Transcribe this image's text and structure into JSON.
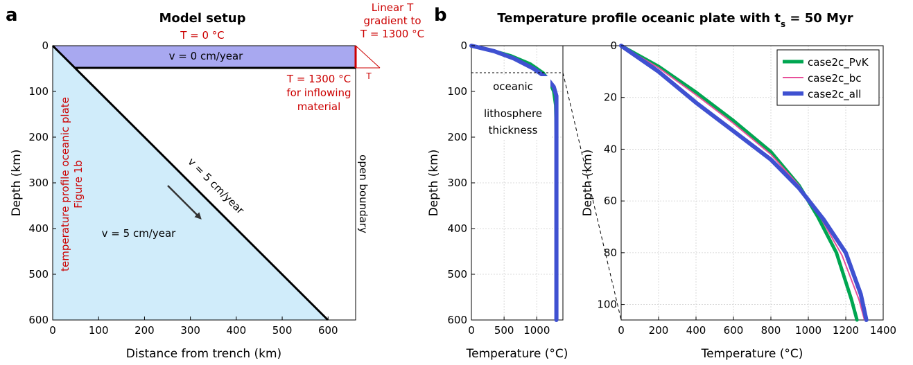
{
  "colors": {
    "red": "#cc0000",
    "purple_region": "#a8a8f0",
    "blue_region": "#d0ecfa",
    "case2c_PvK": "#00a651",
    "case2c_bc": "#e8509a",
    "case2c_all": "#3f51d1"
  },
  "panel_a": {
    "letter": "a",
    "title": "Model setup",
    "top_T": "T = 0 °C",
    "linear_T_1": "Linear T",
    "linear_T_2": "gradient to",
    "linear_T_3": "T = 1300 °C",
    "T_small": "T",
    "T1300_1": "T = 1300 °C",
    "T1300_2": "for inflowing",
    "T1300_3": "material",
    "v0": "v = 0 cm/year",
    "v5_slab": "v = 5 cm/year",
    "v5_mantle": "v = 5 cm/year",
    "left_red_1": "temperature profile oceanic plate",
    "left_red_2": "Figure 1b",
    "open_boundary": "open boundary",
    "xlabel": "Distance from trench (km)",
    "ylabel": "Depth (km)",
    "xticks": [
      "0",
      "100",
      "200",
      "300",
      "400",
      "500",
      "600"
    ],
    "yticks": [
      "0",
      "100",
      "200",
      "300",
      "400",
      "500",
      "600"
    ]
  },
  "panel_b": {
    "letter": "b",
    "title_main": "Temperature profile oceanic plate with t",
    "title_sub": "s",
    "title_end": " = 50 Myr",
    "annot_1": "oceanic",
    "annot_2": "lithosphere",
    "annot_3": "thickness",
    "left_xlabel": "Temperature (°C)",
    "left_ylabel": "Depth (km)",
    "left_xticks": [
      "0",
      "500",
      "1000"
    ],
    "left_yticks": [
      "0",
      "100",
      "200",
      "300",
      "400",
      "500",
      "600"
    ],
    "right_xlabel": "Temperature (°C)",
    "right_ylabel": "Depth (km)",
    "right_xticks": [
      "0",
      "200",
      "400",
      "600",
      "800",
      "1000",
      "1200",
      "1400"
    ],
    "right_yticks": [
      "0",
      "20",
      "40",
      "60",
      "80",
      "100"
    ],
    "legend": [
      "case2c_PvK",
      "case2c_bc",
      "case2c_all"
    ]
  },
  "chart_data": [
    {
      "type": "line",
      "panel": "b-left",
      "xlabel": "Temperature (°C)",
      "ylabel": "Depth (km)",
      "xlim": [
        0,
        1400
      ],
      "ylim": [
        600,
        0
      ],
      "grid": true,
      "series": [
        {
          "name": "case2c_PvK",
          "x": [
            0,
            300,
            600,
            900,
            1100,
            1200,
            1260,
            1290,
            1300,
            1300
          ],
          "y": [
            0,
            10,
            22,
            40,
            60,
            80,
            100,
            130,
            200,
            600
          ]
        },
        {
          "name": "case2c_all",
          "x": [
            0,
            350,
            650,
            950,
            1150,
            1260,
            1300,
            1300,
            1300
          ],
          "y": [
            0,
            12,
            28,
            50,
            70,
            90,
            110,
            200,
            600
          ]
        }
      ]
    },
    {
      "type": "line",
      "panel": "b-right",
      "xlabel": "Temperature (°C)",
      "ylabel": "Depth (km)",
      "xlim": [
        0,
        1400
      ],
      "ylim": [
        106,
        0
      ],
      "grid": true,
      "legend_loc": "top-right",
      "series": [
        {
          "name": "case2c_PvK",
          "x": [
            0,
            200,
            400,
            600,
            800,
            950,
            1050,
            1150,
            1230,
            1260
          ],
          "y": [
            0,
            8,
            18,
            29,
            41,
            54,
            66,
            80,
            98,
            106
          ]
        },
        {
          "name": "case2c_bc",
          "x": [
            0,
            200,
            400,
            600,
            800,
            950,
            1070,
            1180,
            1270,
            1300
          ],
          "y": [
            0,
            8.5,
            19,
            30,
            42,
            54,
            67,
            81,
            98,
            106
          ]
        },
        {
          "name": "case2c_all",
          "x": [
            0,
            200,
            400,
            600,
            800,
            950,
            1080,
            1200,
            1280,
            1310
          ],
          "y": [
            0,
            10,
            22,
            33,
            44,
            55,
            67,
            80,
            96,
            106
          ]
        }
      ]
    }
  ]
}
